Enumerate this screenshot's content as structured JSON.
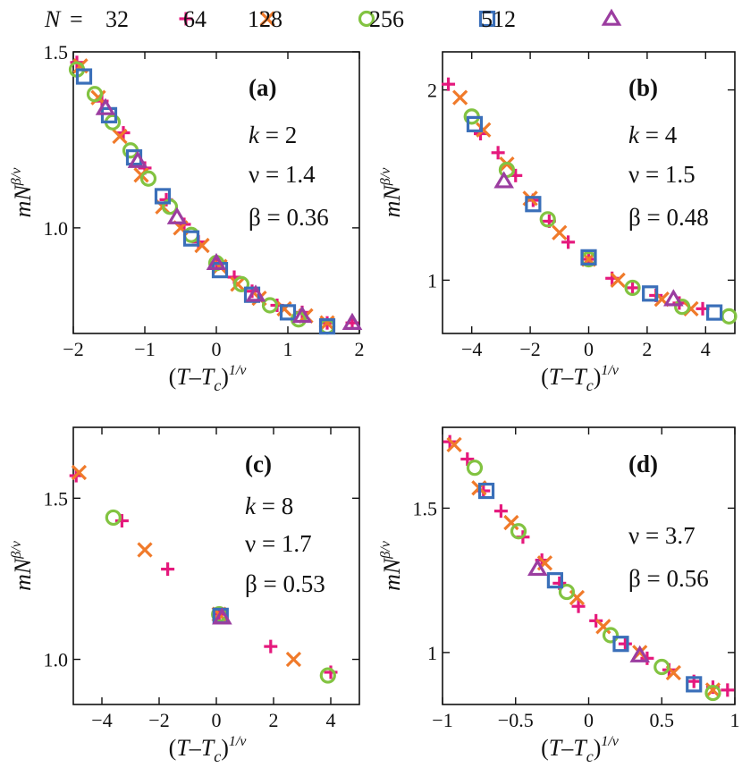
{
  "legend": {
    "prefix": "N",
    "entries": [
      {
        "label": "32",
        "marker": "plus",
        "color": "#e5197d"
      },
      {
        "label": "64",
        "marker": "cross",
        "color": "#f07a2a"
      },
      {
        "label": "128",
        "marker": "circle",
        "color": "#82c341"
      },
      {
        "label": "256",
        "marker": "square",
        "color": "#3a6fb9"
      },
      {
        "label": "512",
        "marker": "triangle",
        "color": "#9b3da0"
      }
    ]
  },
  "chart_data": [
    {
      "type": "scatter",
      "panel": "(a)",
      "annotations": [
        "k = 2",
        "ν = 1.4",
        "β = 0.36"
      ],
      "xlabel": "(T–Tc)^1/ν",
      "ylabel": "mN^β/ν",
      "xlim": [
        -2,
        2
      ],
      "ylim": [
        0.7,
        1.5
      ],
      "xticks": [
        -2,
        -1,
        0,
        1,
        2
      ],
      "xtick_labels": [
        "−2",
        "−1",
        "0",
        "1",
        "2"
      ],
      "yticks": [
        1.0,
        1.5
      ],
      "ytick_labels": [
        "1.0",
        "1.5"
      ],
      "series": [
        {
          "name": "32",
          "points": [
            [
              -1.95,
              1.47
            ],
            [
              -1.6,
              1.36
            ],
            [
              -1.3,
              1.27
            ],
            [
              -1.0,
              1.17
            ],
            [
              -0.7,
              1.08
            ],
            [
              -0.45,
              1.01
            ],
            [
              -0.25,
              0.96
            ],
            [
              0.0,
              0.9
            ],
            [
              0.25,
              0.86
            ],
            [
              0.5,
              0.82
            ],
            [
              0.85,
              0.78
            ],
            [
              1.2,
              0.76
            ],
            [
              1.55,
              0.73
            ],
            [
              1.9,
              0.73
            ]
          ]
        },
        {
          "name": "64",
          "points": [
            [
              -1.9,
              1.46
            ],
            [
              -1.65,
              1.37
            ],
            [
              -1.35,
              1.26
            ],
            [
              -1.05,
              1.15
            ],
            [
              -0.75,
              1.06
            ],
            [
              -0.5,
              1.0
            ],
            [
              -0.2,
              0.95
            ],
            [
              0.05,
              0.89
            ],
            [
              0.3,
              0.84
            ],
            [
              0.6,
              0.8
            ],
            [
              0.95,
              0.77
            ],
            [
              1.25,
              0.75
            ],
            [
              1.55,
              0.73
            ]
          ]
        },
        {
          "name": "128",
          "points": [
            [
              -1.95,
              1.45
            ],
            [
              -1.7,
              1.38
            ],
            [
              -1.45,
              1.3
            ],
            [
              -1.2,
              1.22
            ],
            [
              -0.95,
              1.14
            ],
            [
              -0.65,
              1.06
            ],
            [
              -0.35,
              0.98
            ],
            [
              0.0,
              0.9
            ],
            [
              0.35,
              0.84
            ],
            [
              0.75,
              0.78
            ],
            [
              1.15,
              0.74
            ],
            [
              1.55,
              0.72
            ]
          ]
        },
        {
          "name": "256",
          "points": [
            [
              -1.85,
              1.43
            ],
            [
              -1.5,
              1.32
            ],
            [
              -1.15,
              1.2
            ],
            [
              -0.75,
              1.09
            ],
            [
              -0.35,
              0.97
            ],
            [
              0.05,
              0.88
            ],
            [
              0.5,
              0.81
            ],
            [
              1.0,
              0.76
            ],
            [
              1.55,
              0.72
            ]
          ]
        },
        {
          "name": "512",
          "points": [
            [
              -1.55,
              1.34
            ],
            [
              -1.1,
              1.19
            ],
            [
              -0.55,
              1.03
            ],
            [
              0.0,
              0.9
            ],
            [
              0.55,
              0.81
            ],
            [
              1.2,
              0.75
            ],
            [
              1.9,
              0.73
            ]
          ]
        }
      ]
    },
    {
      "type": "scatter",
      "panel": "(b)",
      "annotations": [
        "k = 4",
        "ν = 1.5",
        "β = 0.48"
      ],
      "xlabel": "(T–Tc)^1/ν",
      "ylabel": "mN^β/ν",
      "xlim": [
        -5,
        5
      ],
      "ylim": [
        0.72,
        2.2
      ],
      "xticks": [
        -4,
        -2,
        0,
        2,
        4
      ],
      "xtick_labels": [
        "−4",
        "−2",
        "0",
        "2",
        "4"
      ],
      "yticks": [
        1,
        2
      ],
      "ytick_labels": [
        "1",
        "2"
      ],
      "series": [
        {
          "name": "32",
          "points": [
            [
              -4.8,
              2.03
            ],
            [
              -3.7,
              1.77
            ],
            [
              -3.1,
              1.67
            ],
            [
              -2.5,
              1.55
            ],
            [
              -1.9,
              1.42
            ],
            [
              -1.35,
              1.31
            ],
            [
              -0.7,
              1.2
            ],
            [
              0.0,
              1.11
            ],
            [
              0.8,
              1.01
            ],
            [
              1.5,
              0.96
            ],
            [
              2.3,
              0.92
            ],
            [
              3.1,
              0.88
            ],
            [
              3.9,
              0.85
            ]
          ]
        },
        {
          "name": "64",
          "points": [
            [
              -4.4,
              1.96
            ],
            [
              -3.6,
              1.79
            ],
            [
              -2.8,
              1.61
            ],
            [
              -2.0,
              1.43
            ],
            [
              -1.0,
              1.25
            ],
            [
              0.0,
              1.11
            ],
            [
              1.0,
              1.0
            ],
            [
              2.5,
              0.9
            ],
            [
              3.5,
              0.85
            ]
          ]
        },
        {
          "name": "128",
          "points": [
            [
              -4.0,
              1.86
            ],
            [
              -2.8,
              1.58
            ],
            [
              -1.4,
              1.32
            ],
            [
              0.0,
              1.11
            ],
            [
              1.5,
              0.96
            ],
            [
              3.2,
              0.86
            ],
            [
              4.8,
              0.81
            ]
          ]
        },
        {
          "name": "256",
          "points": [
            [
              -3.9,
              1.82
            ],
            [
              -1.9,
              1.4
            ],
            [
              0.0,
              1.12
            ],
            [
              2.1,
              0.93
            ],
            [
              4.3,
              0.83
            ]
          ]
        },
        {
          "name": "512",
          "points": [
            [
              -2.9,
              1.52
            ],
            [
              2.9,
              0.9
            ]
          ]
        }
      ]
    },
    {
      "type": "scatter",
      "panel": "(c)",
      "annotations": [
        "k = 8",
        "ν = 1.7",
        "β = 0.53"
      ],
      "xlabel": "(T–Tc)^1/ν",
      "ylabel": "mN^β/ν",
      "xlim": [
        -5,
        5
      ],
      "ylim": [
        0.86,
        1.72
      ],
      "xticks": [
        -4,
        -2,
        0,
        2,
        4
      ],
      "xtick_labels": [
        "−4",
        "−2",
        "0",
        "2",
        "4"
      ],
      "yticks": [
        1.0,
        1.5
      ],
      "ytick_labels": [
        "1.0",
        "1.5"
      ],
      "series": [
        {
          "name": "32",
          "points": [
            [
              -4.9,
              1.57
            ],
            [
              -3.3,
              1.43
            ],
            [
              -1.7,
              1.28
            ],
            [
              0.1,
              1.14
            ],
            [
              1.9,
              1.04
            ],
            [
              4.0,
              0.96
            ]
          ]
        },
        {
          "name": "64",
          "points": [
            [
              -4.8,
              1.58
            ],
            [
              -2.5,
              1.34
            ],
            [
              0.1,
              1.14
            ],
            [
              2.7,
              1.0
            ]
          ]
        },
        {
          "name": "128",
          "points": [
            [
              -3.6,
              1.44
            ],
            [
              0.1,
              1.14
            ],
            [
              3.9,
              0.95
            ]
          ]
        },
        {
          "name": "256",
          "points": [
            [
              0.15,
              1.135
            ]
          ]
        },
        {
          "name": "512",
          "points": [
            [
              0.2,
              1.13
            ]
          ]
        }
      ]
    },
    {
      "type": "scatter",
      "panel": "(d)",
      "annotations": [
        "ν = 3.7",
        "β = 0.56"
      ],
      "xlabel": "(T–Tc)^1/ν",
      "ylabel": "mN^β/ν",
      "xlim": [
        -1,
        1
      ],
      "ylim": [
        0.82,
        1.78
      ],
      "xticks": [
        -1,
        -0.5,
        0,
        0.5,
        1
      ],
      "xtick_labels": [
        "−1",
        "−0.5",
        "0",
        "0.5",
        "1"
      ],
      "yticks": [
        1,
        1.5
      ],
      "ytick_labels": [
        "1",
        "1.5"
      ],
      "series": [
        {
          "name": "32",
          "points": [
            [
              -0.95,
              1.73
            ],
            [
              -0.83,
              1.67
            ],
            [
              -0.72,
              1.56
            ],
            [
              -0.6,
              1.49
            ],
            [
              -0.45,
              1.4
            ],
            [
              -0.32,
              1.32
            ],
            [
              -0.2,
              1.24
            ],
            [
              -0.07,
              1.16
            ],
            [
              0.05,
              1.11
            ],
            [
              0.25,
              1.03
            ],
            [
              0.4,
              0.98
            ],
            [
              0.55,
              0.94
            ],
            [
              0.72,
              0.9
            ],
            [
              0.85,
              0.88
            ],
            [
              0.95,
              0.87
            ]
          ]
        },
        {
          "name": "64",
          "points": [
            [
              -0.92,
              1.72
            ],
            [
              -0.75,
              1.57
            ],
            [
              -0.53,
              1.45
            ],
            [
              -0.3,
              1.31
            ],
            [
              -0.08,
              1.19
            ],
            [
              0.1,
              1.09
            ],
            [
              0.35,
              1.0
            ],
            [
              0.58,
              0.93
            ],
            [
              0.85,
              0.87
            ]
          ]
        },
        {
          "name": "128",
          "points": [
            [
              -0.78,
              1.64
            ],
            [
              -0.48,
              1.42
            ],
            [
              -0.15,
              1.21
            ],
            [
              0.15,
              1.06
            ],
            [
              0.5,
              0.95
            ],
            [
              0.85,
              0.86
            ]
          ]
        },
        {
          "name": "256",
          "points": [
            [
              -0.7,
              1.56
            ],
            [
              -0.23,
              1.25
            ],
            [
              0.22,
              1.03
            ],
            [
              0.72,
              0.89
            ]
          ]
        },
        {
          "name": "512",
          "points": [
            [
              -0.35,
              1.29
            ],
            [
              0.35,
              0.99
            ]
          ]
        }
      ]
    }
  ]
}
